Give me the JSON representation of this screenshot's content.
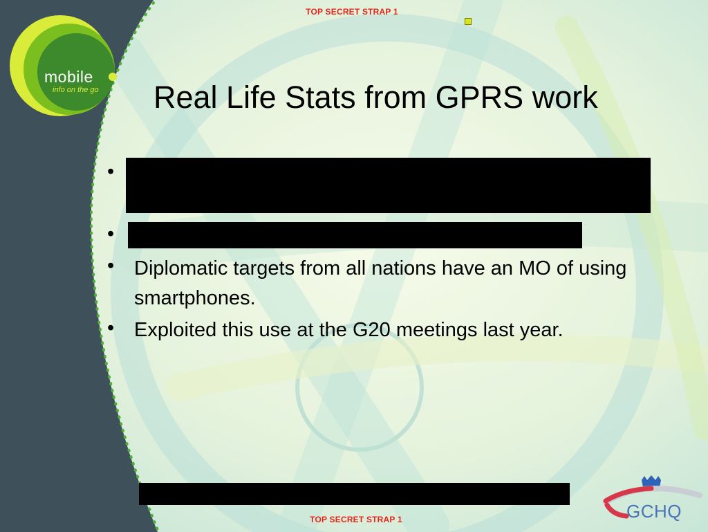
{
  "classification": {
    "top": "TOP SECRET STRAP 1",
    "bottom": "TOP SECRET STRAP 1"
  },
  "logo": {
    "word": "mobile",
    "tagline": "info on the go"
  },
  "slide": {
    "title": "Real Life Stats from GPRS work",
    "bullets": [
      {
        "text": "",
        "redacted": true
      },
      {
        "text": "",
        "redacted": true
      },
      {
        "text": "Diplomatic targets from all nations have an MO of using smartphones.",
        "redacted": false
      },
      {
        "text": "Exploited this use at the G20 meetings last year.",
        "redacted": false
      }
    ]
  },
  "footer": {
    "redacted": true
  },
  "gchq_logo": {
    "text": "GCHQ"
  },
  "colors": {
    "classification": "#e3241b",
    "sidebar": "#3e5059",
    "logo_green": "#7bbf1f",
    "logo_dark_green": "#3d8a2c",
    "logo_lime": "#d9ec3a",
    "gchq_blue": "#4a73b6",
    "gchq_red": "#d6384a"
  }
}
